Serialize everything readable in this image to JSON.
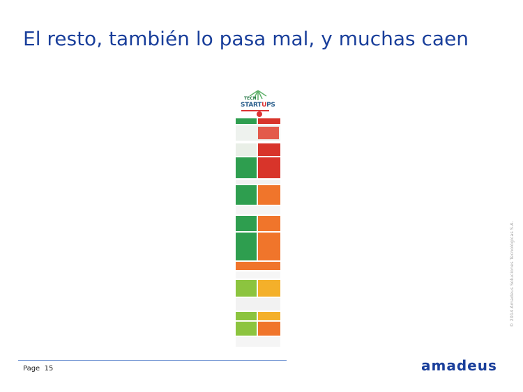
{
  "slide": {
    "title": "El resto, también lo pasa mal, y muchas caen",
    "page_label": "Page",
    "page_number": "15",
    "copyright": "© 2014 Amadeus Soluciones Tecnológicas S.A.",
    "logo_text": "amadeus"
  },
  "infographic": {
    "header_line1": "TECH",
    "header_line2_a": "START",
    "header_line2_u": "U",
    "header_line2_b": "PS",
    "colors": {
      "green": "#2e9e4f",
      "red": "#d8342a",
      "orange": "#f0752b",
      "lime": "#8cc43f",
      "yellow": "#f4b02a"
    }
  }
}
